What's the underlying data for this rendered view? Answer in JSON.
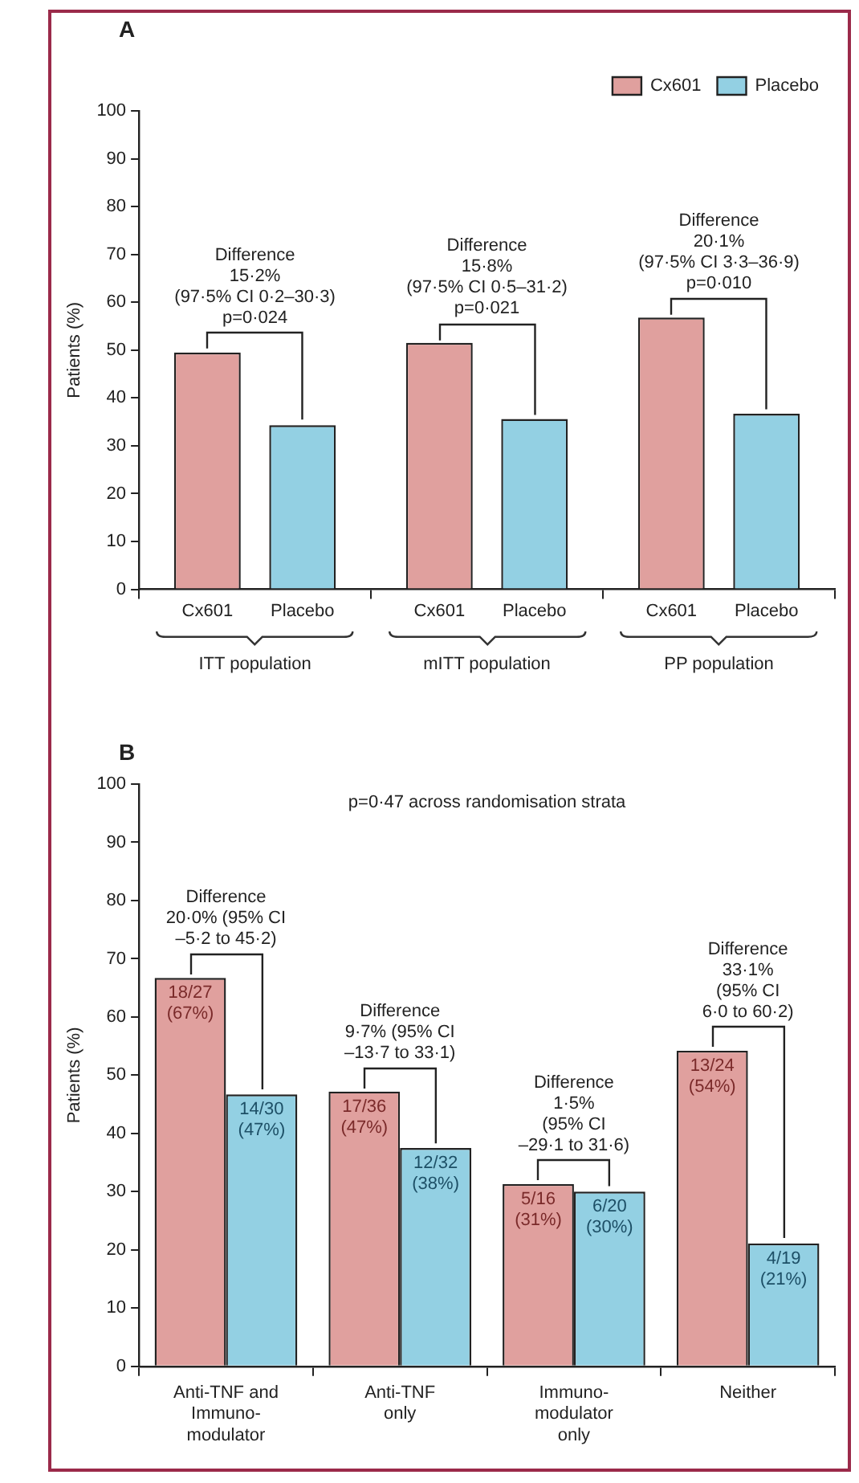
{
  "chart_data": [
    {
      "type": "bar",
      "title": "A",
      "ylabel": "Patients (%)",
      "categories": [
        "ITT population",
        "mITT population",
        "PP population"
      ],
      "series": [
        {
          "name": "Cx601",
          "color": "#e0a09e",
          "values": [
            49.5,
            51.5,
            56.8
          ]
        },
        {
          "name": "Placebo",
          "color": "#93d0e3",
          "values": [
            34.3,
            35.6,
            36.7
          ]
        }
      ],
      "ylim": [
        0,
        100
      ],
      "yticks": [
        0,
        10,
        20,
        30,
        40,
        50,
        60,
        70,
        80,
        90,
        100
      ],
      "grid": false,
      "legend": "top right",
      "annotations": [
        "Difference\n15·2%\n(97·5% CI 0·2–30·3)\np=0·024",
        "Difference\n15·8%\n(97·5% CI 0·5–31·2)\np=0·021",
        "Difference\n20·1%\n(97·5% CI 3·3–36·9)\np=0·010"
      ]
    },
    {
      "type": "bar",
      "title": "B",
      "subtitle": "p=0·47 across randomisation strata",
      "ylabel": "Patients (%)",
      "categories": [
        "Anti-TNF and\nImmuno-\nmodulator",
        "Anti-TNF\nonly",
        "Immuno-\nmodulator\nonly",
        "Neither"
      ],
      "series": [
        {
          "color": "#e0a09e",
          "values": [
            66.7,
            47.2,
            31.3,
            54.2
          ],
          "value_labels": [
            "18/27 (67%)",
            "17/36 (47%)",
            "5/16 (31%)",
            "13/24 (54%)"
          ]
        },
        {
          "color": "#93d0e3",
          "values": [
            46.7,
            37.5,
            30.0,
            21.1
          ],
          "value_labels": [
            "14/30 (47%)",
            "12/32 (38%)",
            "6/20 (30%)",
            "4/19 (21%)"
          ]
        }
      ],
      "ylim": [
        0,
        100
      ],
      "yticks": [
        0,
        10,
        20,
        30,
        40,
        50,
        60,
        70,
        80,
        90,
        100
      ],
      "grid": false,
      "legend": false,
      "annotations": [
        "Difference\n20·0% (95% CI\n–5·2 to 45·2)",
        "Difference\n9·7% (95% CI\n–13·7 to 33·1)",
        "Difference\n1·5%\n(95% CI\n–29·1 to 31·6)",
        "Difference\n33·1%\n(95% CI\n6·0 to 60·2)"
      ]
    }
  ]
}
